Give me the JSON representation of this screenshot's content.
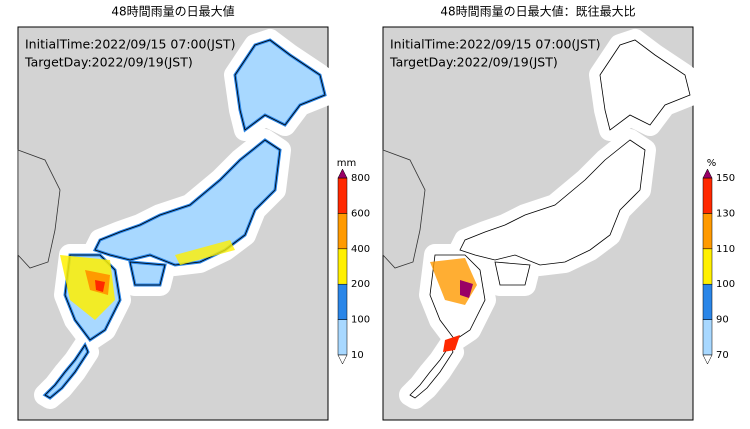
{
  "panels": [
    {
      "title": "48時間雨量の日最大値",
      "initial_time": "InitialTime:2022/09/15 07:00(JST)",
      "target_day": "TargetDay:2022/09/19(JST)",
      "colorbar": {
        "unit": "mm",
        "ticks": [
          "10",
          "100",
          "200",
          "400",
          "600",
          "800"
        ],
        "colors": [
          "#a8d8ff",
          "#2a86e8",
          "#fff000",
          "#ff9a00",
          "#ff2800"
        ],
        "over_color": "#990066",
        "under_color": "#ffffff"
      }
    },
    {
      "title": "48時間雨量の日最大値：既往最大比",
      "initial_time": "InitialTime:2022/09/15 07:00(JST)",
      "target_day": "TargetDay:2022/09/19(JST)",
      "colorbar": {
        "unit": "%",
        "ticks": [
          "70",
          "90",
          "100",
          "110",
          "130",
          "150"
        ],
        "colors": [
          "#a8d8ff",
          "#2a86e8",
          "#fff000",
          "#ff9a00",
          "#ff2800"
        ],
        "over_color": "#990066",
        "under_color": "#ffffff"
      }
    }
  ]
}
